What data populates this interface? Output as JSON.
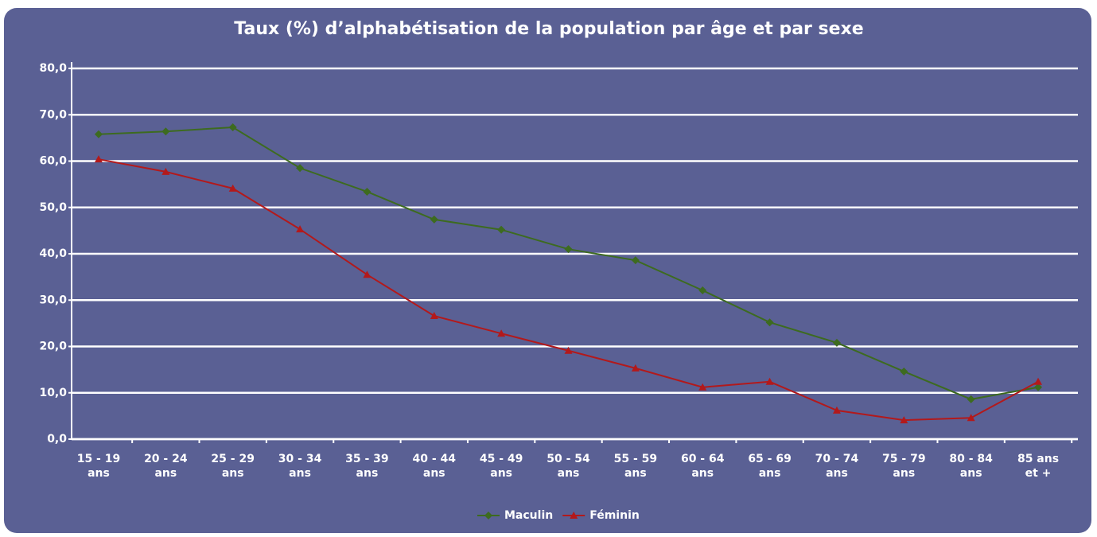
{
  "chart_data": {
    "type": "line",
    "title": "Taux (%) d’alphabétisation de la population par âge et par sexe",
    "categories": [
      "15 - 19 ans",
      "20 - 24 ans",
      "25 - 29 ans",
      "30 - 34 ans",
      "35 - 39 ans",
      "40 - 44 ans",
      "45 - 49 ans",
      "50 - 54 ans",
      "55 - 59 ans",
      "60 - 64 ans",
      "65 - 69 ans",
      "70 - 74 ans",
      "75 - 79 ans",
      "80 - 84 ans",
      "85 ans et +"
    ],
    "series": [
      {
        "name": "Maculin",
        "color": "#3d6b1f",
        "values": [
          65.8,
          66.4,
          67.3,
          58.5,
          53.4,
          47.4,
          45.2,
          41.0,
          38.6,
          32.1,
          25.2,
          20.8,
          14.6,
          8.6,
          11.2
        ]
      },
      {
        "name": "Féminin",
        "color": "#b3191b",
        "values": [
          60.4,
          57.7,
          54.1,
          45.3,
          35.5,
          26.6,
          22.8,
          19.1,
          15.3,
          11.2,
          12.4,
          6.2,
          4.1,
          4.6,
          12.4
        ]
      }
    ],
    "ylim": [
      0,
      80
    ],
    "yticks": [
      {
        "value": 0,
        "label": "0,0"
      },
      {
        "value": 10,
        "label": "10,0"
      },
      {
        "value": 20,
        "label": "20,0"
      },
      {
        "value": 30,
        "label": "30,0"
      },
      {
        "value": 40,
        "label": "40,0"
      },
      {
        "value": 50,
        "label": "50,0"
      },
      {
        "value": 60,
        "label": "60,0"
      },
      {
        "value": 70,
        "label": "70,0"
      },
      {
        "value": 80,
        "label": "80,0"
      }
    ],
    "grid": true,
    "legend": "bottom"
  }
}
